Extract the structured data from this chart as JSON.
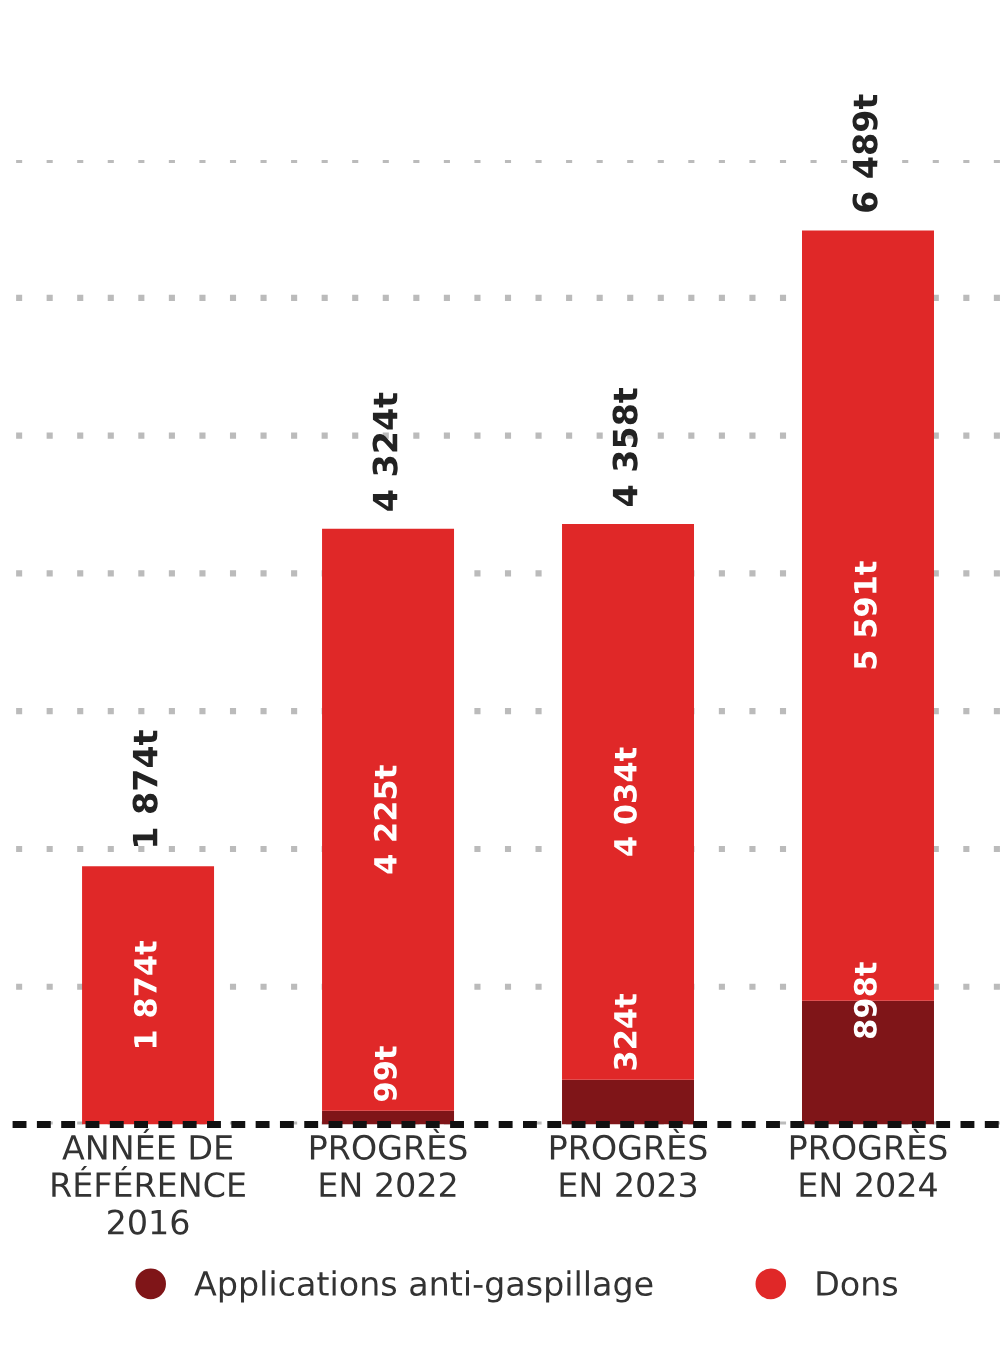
{
  "chart_data": {
    "type": "bar",
    "stacked": true,
    "categories": [
      "ANNÉE DE\nRÉFÉRENCE\n2016",
      "PROGRÈS\nEN 2022",
      "PROGRÈS\nEN 2023",
      "PROGRÈS\nEN 2024"
    ],
    "series": [
      {
        "name": "Applications anti-gaspillage",
        "color": "#7f1518",
        "values": [
          null,
          99,
          324,
          898
        ],
        "value_labels": [
          null,
          "99t",
          "324t",
          "898t"
        ]
      },
      {
        "name": "Dons",
        "color": "#e02828",
        "values": [
          1874,
          4225,
          4034,
          5591
        ],
        "value_labels": [
          "1 874t",
          "4 225t",
          "4 034t",
          "5 591t"
        ]
      }
    ],
    "annotations": [
      {
        "text": "1 874t",
        "x": "ANNÉE DE\nRÉFÉRENCE\n2016",
        "y": 1874
      },
      {
        "text": "4 324t",
        "x": "PROGRÈS\nEN 2022",
        "y": 4324
      },
      {
        "text": "4 358t",
        "x": "PROGRÈS\nEN 2023",
        "y": 4358
      },
      {
        "text": "6 489t",
        "x": "PROGRÈS\nEN 2024",
        "y": 6489
      }
    ],
    "ylim": [
      0,
      7000
    ],
    "yticks": [
      {
        "value": 0,
        "label": null
      },
      {
        "value": 1000,
        "label": null
      },
      {
        "value": 2000,
        "label": null
      },
      {
        "value": 3000,
        "label": null
      },
      {
        "value": 4000,
        "label": null
      },
      {
        "value": 5000,
        "label": null
      },
      {
        "value": 6000,
        "label": null
      },
      {
        "value": 7000,
        "label": null
      }
    ],
    "tick_labels": "x",
    "grid": "y",
    "legend": "bottom",
    "marker": "circle"
  }
}
